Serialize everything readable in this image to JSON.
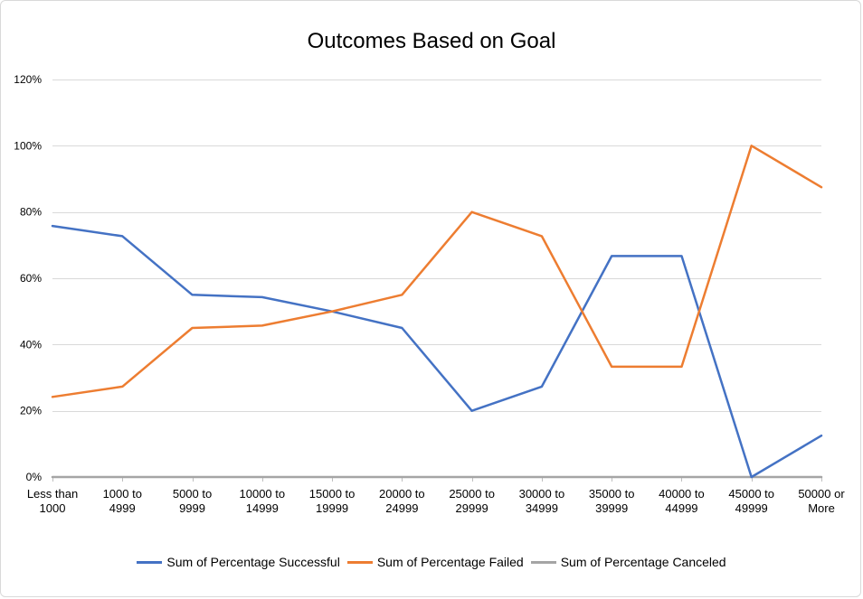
{
  "chart_data": {
    "type": "line",
    "title": "Outcomes Based on Goal",
    "xlabel": "",
    "ylabel": "",
    "ylim": [
      0,
      120
    ],
    "y_ticks": [
      "0%",
      "20%",
      "40%",
      "60%",
      "80%",
      "100%",
      "120%"
    ],
    "y_tick_values": [
      0,
      20,
      40,
      60,
      80,
      100,
      120
    ],
    "grid": true,
    "legend_position": "bottom",
    "categories": [
      [
        "Less than",
        "1000"
      ],
      [
        "1000 to",
        "4999"
      ],
      [
        "5000 to",
        "9999"
      ],
      [
        "10000 to",
        "14999"
      ],
      [
        "15000 to",
        "19999"
      ],
      [
        "20000 to",
        "24999"
      ],
      [
        "25000 to",
        "29999"
      ],
      [
        "30000 to",
        "34999"
      ],
      [
        "35000 to",
        "39999"
      ],
      [
        "40000 to",
        "44999"
      ],
      [
        "45000 to",
        "49999"
      ],
      [
        "50000 or",
        "More"
      ]
    ],
    "series": [
      {
        "name": "Sum of Percentage Successful",
        "color": "#4472c4",
        "values": [
          75.8,
          72.7,
          55.0,
          54.3,
          50.0,
          45.0,
          20.0,
          27.3,
          66.7,
          66.7,
          0,
          12.5
        ]
      },
      {
        "name": "Sum of Percentage Failed",
        "color": "#ed7d31",
        "values": [
          24.2,
          27.3,
          45.0,
          45.7,
          50.0,
          55.0,
          80.0,
          72.7,
          33.3,
          33.3,
          100,
          87.5
        ]
      },
      {
        "name": "Sum of Percentage Canceled",
        "color": "#a5a5a5",
        "values": [
          0,
          0,
          0,
          0,
          0,
          0,
          0,
          0,
          0,
          0,
          0,
          0
        ]
      }
    ]
  }
}
